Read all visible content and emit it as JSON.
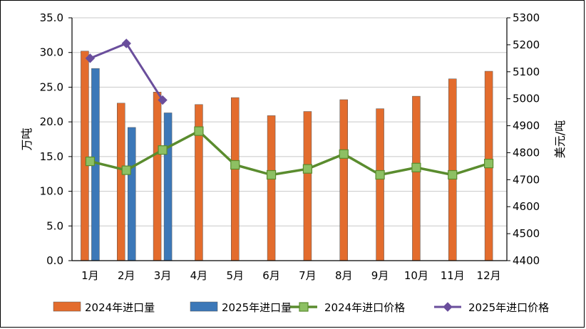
{
  "chart_data": {
    "type": "bar",
    "categories": [
      "1月",
      "2月",
      "3月",
      "4月",
      "5月",
      "6月",
      "7月",
      "8月",
      "9月",
      "10月",
      "11月",
      "12月"
    ],
    "series": [
      {
        "name": "2024年进口量",
        "kind": "bar",
        "axis": "left",
        "color": "#E36C2D",
        "values": [
          30.2,
          22.7,
          24.3,
          22.5,
          23.5,
          20.9,
          21.5,
          23.2,
          21.9,
          23.7,
          26.2,
          27.3
        ]
      },
      {
        "name": "2025年进口量",
        "kind": "bar",
        "axis": "left",
        "color": "#3C78B8",
        "values": [
          27.7,
          19.2,
          21.3,
          null,
          null,
          null,
          null,
          null,
          null,
          null,
          null,
          null
        ]
      },
      {
        "name": "2024年进口价格",
        "kind": "line",
        "axis": "right",
        "color": "#5A8C2E",
        "marker_color": "#8DC063",
        "values": [
          4768,
          4735,
          4810,
          4880,
          4755,
          4718,
          4740,
          4795,
          4718,
          4745,
          4718,
          4760
        ]
      },
      {
        "name": "2025年进口价格",
        "kind": "line",
        "axis": "right",
        "color": "#6A4E9C",
        "marker_color": "#6A4E9C",
        "values": [
          5150,
          5205,
          4995,
          null,
          null,
          null,
          null,
          null,
          null,
          null,
          null,
          null
        ]
      }
    ],
    "y_left": {
      "label": "万吨",
      "ylim": [
        0,
        35
      ],
      "ticks": [
        "0.0",
        "5.0",
        "10.0",
        "15.0",
        "20.0",
        "25.0",
        "30.0",
        "35.0"
      ]
    },
    "y_right": {
      "label": "美元/吨",
      "ylim": [
        4400,
        5300
      ],
      "ticks": [
        "4400",
        "4500",
        "4600",
        "4700",
        "4800",
        "4900",
        "5000",
        "5100",
        "5200",
        "5300"
      ]
    },
    "grid": true,
    "legend": "bottom"
  }
}
